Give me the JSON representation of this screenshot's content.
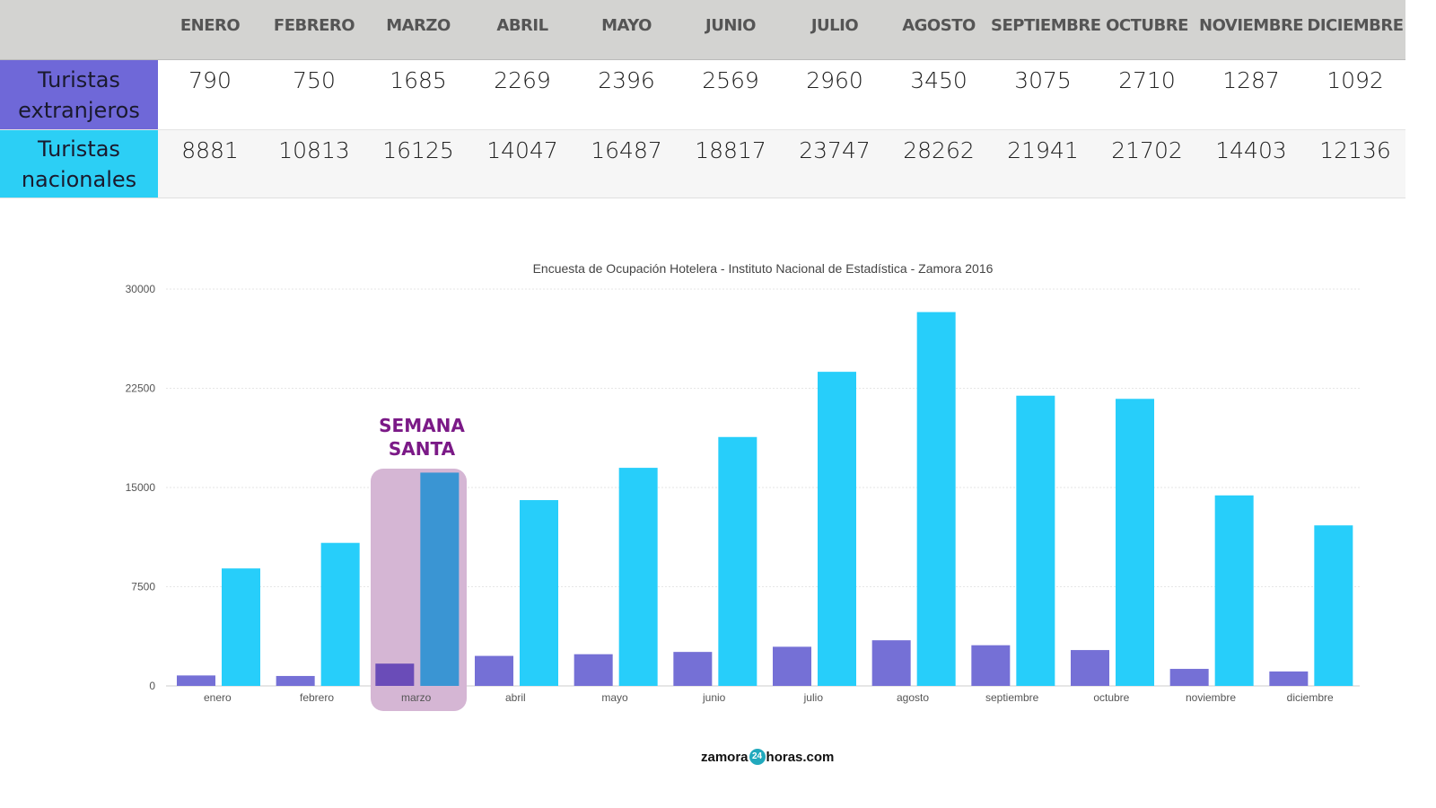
{
  "table": {
    "months": [
      "ENERO",
      "FEBRERO",
      "MARZO",
      "ABRIL",
      "MAYO",
      "JUNIO",
      "JULIO",
      "AGOSTO",
      "SEPTIEMBRE",
      "OCTUBRE",
      "NOVIEMBRE",
      "DICIEMBRE"
    ],
    "rows": [
      {
        "label_1": "Turistas",
        "label_2": "extranjeros",
        "values": [
          "790",
          "750",
          "1685",
          "2269",
          "2396",
          "2569",
          "2960",
          "3450",
          "3075",
          "2710",
          "1287",
          "1092"
        ]
      },
      {
        "label_1": "Turistas",
        "label_2": "nacionales",
        "values": [
          "8881",
          "10813",
          "16125",
          "14047",
          "16487",
          "18817",
          "23747",
          "28262",
          "21941",
          "21702",
          "14403",
          "12136"
        ]
      }
    ]
  },
  "chart_data": {
    "type": "bar",
    "title": "Encuesta de Ocupación Hotelera - Instituto Nacional de Estadística - Zamora 2016",
    "categories": [
      "enero",
      "febrero",
      "marzo",
      "abril",
      "mayo",
      "junio",
      "julio",
      "agosto",
      "septiembre",
      "octubre",
      "noviembre",
      "diciembre"
    ],
    "series": [
      {
        "values": [
          790,
          750,
          1685,
          2269,
          2396,
          2569,
          2960,
          3450,
          3075,
          2710,
          1287,
          1092
        ],
        "color": "#7570d6"
      },
      {
        "values": [
          8881,
          10813,
          16125,
          14047,
          16487,
          18817,
          23747,
          28262,
          21941,
          21702,
          14403,
          12136
        ],
        "color": "#27cefa"
      }
    ],
    "ylim": [
      0,
      30000
    ],
    "yticks": [
      "0",
      "7500",
      "15000",
      "22500",
      "30000"
    ],
    "grid": true,
    "annotation": {
      "line_1": "SEMANA",
      "line_2": "SANTA",
      "category": "marzo",
      "color": "#7b1a87",
      "highlight": "#d5b6d4",
      "highlight_bar_colors": [
        "#6a4cb8",
        "#3a95d3"
      ]
    }
  },
  "logo": {
    "pre": "zamora",
    "mid": "24",
    "post": "horas.com"
  }
}
